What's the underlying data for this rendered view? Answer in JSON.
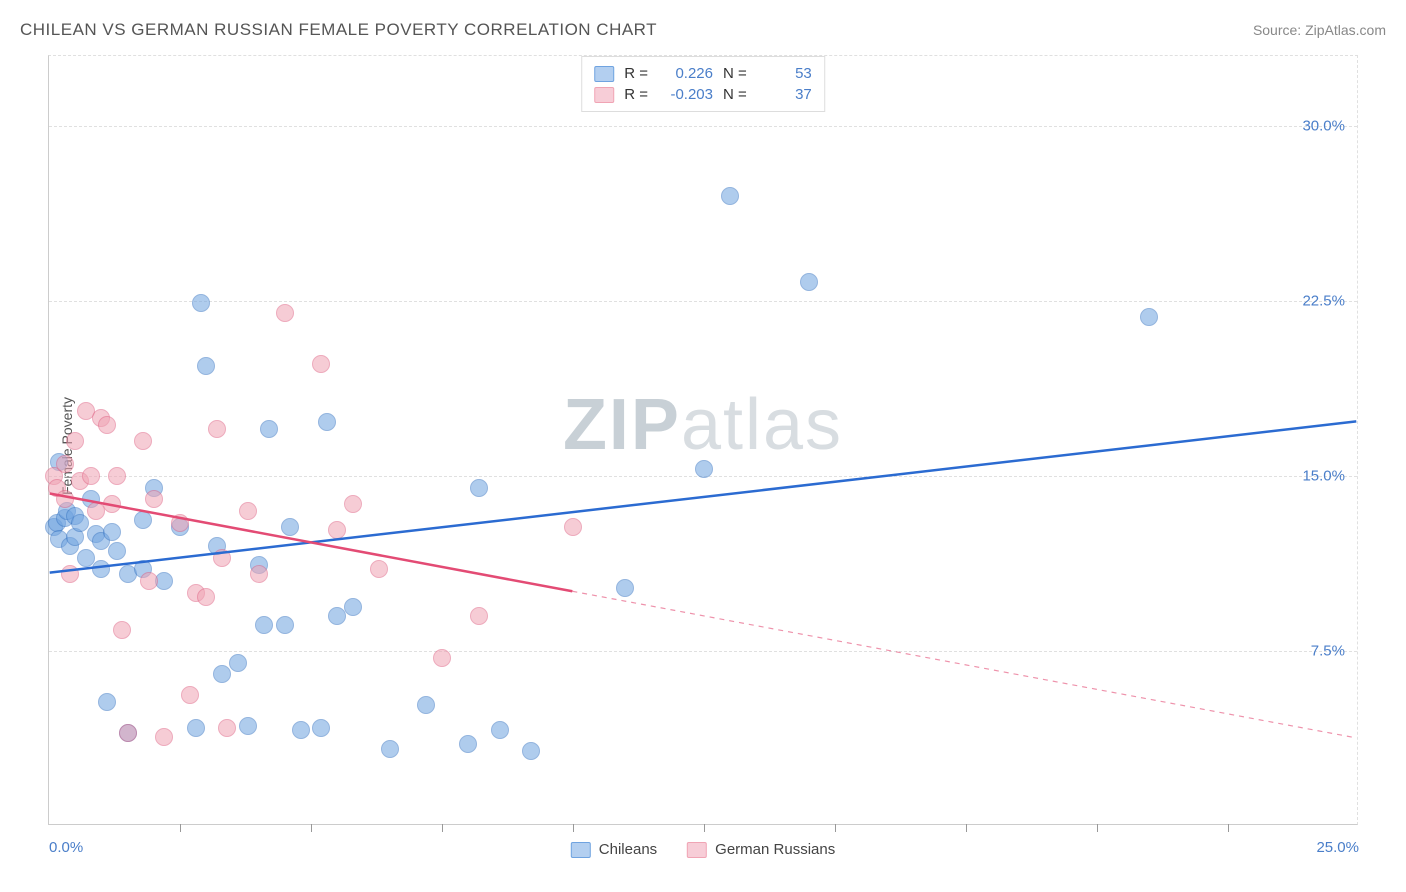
{
  "title": "CHILEAN VS GERMAN RUSSIAN FEMALE POVERTY CORRELATION CHART",
  "source": "Source: ZipAtlas.com",
  "y_axis_label": "Female Poverty",
  "watermark_bold": "ZIP",
  "watermark_light": "atlas",
  "chart": {
    "type": "scatter",
    "background_color": "#ffffff",
    "grid_color": "#e0e0e0",
    "axis_color": "#cccccc",
    "tick_label_color": "#4a7ec9",
    "x_range": [
      0,
      25
    ],
    "y_range": [
      0,
      33
    ],
    "y_ticks": [
      7.5,
      15.0,
      22.5,
      30.0
    ],
    "y_tick_labels": [
      "7.5%",
      "15.0%",
      "22.5%",
      "30.0%"
    ],
    "x_ticks_minor": [
      2.5,
      5,
      7.5,
      10,
      12.5,
      15,
      17.5,
      20,
      22.5
    ],
    "x_tick_labels": [
      {
        "pos": 0,
        "text": "0.0%"
      },
      {
        "pos": 25,
        "text": "25.0%"
      }
    ],
    "marker_radius": 9,
    "marker_stroke_width": 1.2,
    "marker_fill_opacity": 0.35,
    "series": [
      {
        "name": "Chileans",
        "color": "#6fa3e0",
        "stroke": "#3b78c4",
        "trend": {
          "x1": 0,
          "y1": 10.8,
          "x2": 25,
          "y2": 17.3,
          "line_width": 2.5,
          "color": "#2b6bd1",
          "dash_from_x": null
        },
        "points": [
          [
            0.1,
            12.8
          ],
          [
            0.15,
            13.0
          ],
          [
            0.2,
            12.3
          ],
          [
            0.2,
            15.6
          ],
          [
            0.3,
            13.2
          ],
          [
            0.35,
            13.5
          ],
          [
            0.4,
            12.0
          ],
          [
            0.5,
            12.4
          ],
          [
            0.5,
            13.3
          ],
          [
            0.6,
            13.0
          ],
          [
            0.7,
            11.5
          ],
          [
            0.8,
            14.0
          ],
          [
            0.9,
            12.5
          ],
          [
            1.0,
            12.2
          ],
          [
            1.0,
            11.0
          ],
          [
            1.1,
            5.3
          ],
          [
            1.2,
            12.6
          ],
          [
            1.3,
            11.8
          ],
          [
            1.5,
            4.0
          ],
          [
            1.5,
            10.8
          ],
          [
            1.8,
            11.0
          ],
          [
            1.8,
            13.1
          ],
          [
            2.0,
            14.5
          ],
          [
            2.2,
            10.5
          ],
          [
            2.5,
            12.8
          ],
          [
            2.8,
            4.2
          ],
          [
            2.9,
            22.4
          ],
          [
            3.0,
            19.7
          ],
          [
            3.2,
            12.0
          ],
          [
            3.3,
            6.5
          ],
          [
            3.6,
            7.0
          ],
          [
            3.8,
            4.3
          ],
          [
            4.0,
            11.2
          ],
          [
            4.1,
            8.6
          ],
          [
            4.2,
            17.0
          ],
          [
            4.5,
            8.6
          ],
          [
            4.6,
            12.8
          ],
          [
            4.8,
            4.1
          ],
          [
            5.2,
            4.2
          ],
          [
            5.3,
            17.3
          ],
          [
            5.5,
            9.0
          ],
          [
            5.8,
            9.4
          ],
          [
            6.5,
            3.3
          ],
          [
            7.2,
            5.2
          ],
          [
            8.0,
            3.5
          ],
          [
            8.2,
            14.5
          ],
          [
            8.6,
            4.1
          ],
          [
            9.2,
            3.2
          ],
          [
            11.0,
            10.2
          ],
          [
            12.5,
            15.3
          ],
          [
            13.0,
            27.0
          ],
          [
            14.5,
            23.3
          ],
          [
            21.0,
            21.8
          ]
        ]
      },
      {
        "name": "German Russians",
        "color": "#f0a4b4",
        "stroke": "#e06686",
        "trend": {
          "x1": 0,
          "y1": 14.2,
          "x2": 25,
          "y2": 3.7,
          "line_width": 2.5,
          "color": "#e34b74",
          "dash_from_x": 10.0
        },
        "points": [
          [
            0.1,
            15.0
          ],
          [
            0.15,
            14.5
          ],
          [
            0.3,
            14.0
          ],
          [
            0.3,
            15.5
          ],
          [
            0.4,
            10.8
          ],
          [
            0.5,
            16.5
          ],
          [
            0.6,
            14.8
          ],
          [
            0.7,
            17.8
          ],
          [
            0.8,
            15.0
          ],
          [
            0.9,
            13.5
          ],
          [
            1.0,
            17.5
          ],
          [
            1.1,
            17.2
          ],
          [
            1.2,
            13.8
          ],
          [
            1.3,
            15.0
          ],
          [
            1.4,
            8.4
          ],
          [
            1.5,
            4.0
          ],
          [
            1.8,
            16.5
          ],
          [
            1.9,
            10.5
          ],
          [
            2.0,
            14.0
          ],
          [
            2.2,
            3.8
          ],
          [
            2.5,
            13.0
          ],
          [
            2.7,
            5.6
          ],
          [
            2.8,
            10.0
          ],
          [
            3.0,
            9.8
          ],
          [
            3.2,
            17.0
          ],
          [
            3.3,
            11.5
          ],
          [
            3.4,
            4.2
          ],
          [
            3.8,
            13.5
          ],
          [
            4.0,
            10.8
          ],
          [
            4.5,
            22.0
          ],
          [
            5.2,
            19.8
          ],
          [
            5.5,
            12.7
          ],
          [
            5.8,
            13.8
          ],
          [
            6.3,
            11.0
          ],
          [
            7.5,
            7.2
          ],
          [
            8.2,
            9.0
          ],
          [
            10.0,
            12.8
          ]
        ]
      }
    ],
    "legend_top": [
      {
        "swatch_fill": "#b3cff0",
        "swatch_stroke": "#6fa3e0",
        "r_label": "R =",
        "r_value": "0.226",
        "n_label": "N =",
        "n_value": "53"
      },
      {
        "swatch_fill": "#f7cdd7",
        "swatch_stroke": "#f0a4b4",
        "r_label": "R =",
        "r_value": "-0.203",
        "n_label": "N =",
        "n_value": "37"
      }
    ],
    "legend_bottom": [
      {
        "swatch_fill": "#b3cff0",
        "swatch_stroke": "#6fa3e0",
        "label": "Chileans"
      },
      {
        "swatch_fill": "#f7cdd7",
        "swatch_stroke": "#f0a4b4",
        "label": "German Russians"
      }
    ]
  }
}
